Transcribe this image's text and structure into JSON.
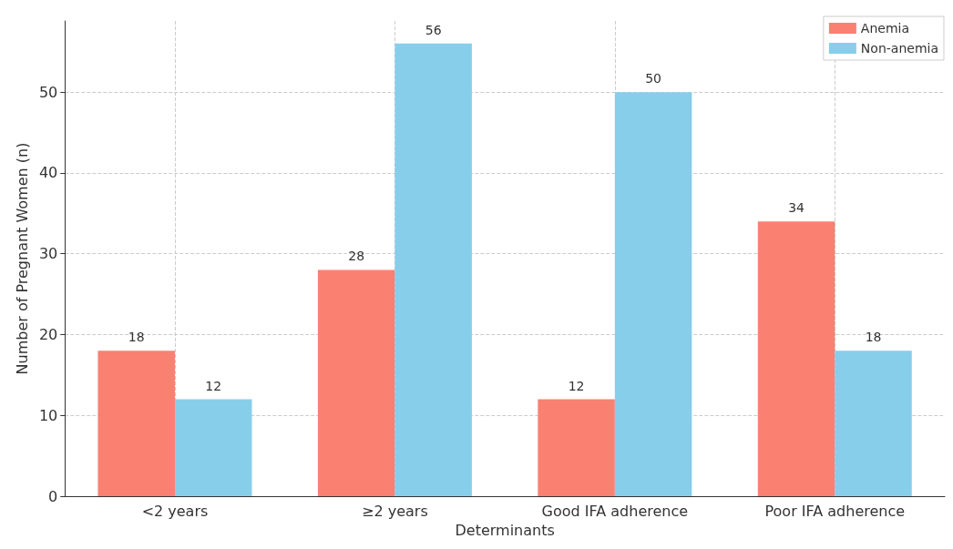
{
  "chart_data": {
    "type": "bar",
    "xlabel": "Determinants",
    "ylabel": "Number of Pregnant Women (n)",
    "categories": [
      "<2 years",
      "≥2 years",
      "Good IFA adherence",
      "Poor IFA adherence"
    ],
    "series": [
      {
        "name": "Anemia",
        "color": "#fa8072",
        "values": [
          18,
          28,
          12,
          34
        ]
      },
      {
        "name": "Non-anemia",
        "color": "#87ceeb",
        "values": [
          12,
          56,
          50,
          18
        ]
      }
    ],
    "ylim": [
      0,
      58.8
    ],
    "yticks": [
      0,
      10,
      20,
      30,
      40,
      50
    ],
    "grid": true,
    "legend": "top right",
    "data_labels": true
  }
}
